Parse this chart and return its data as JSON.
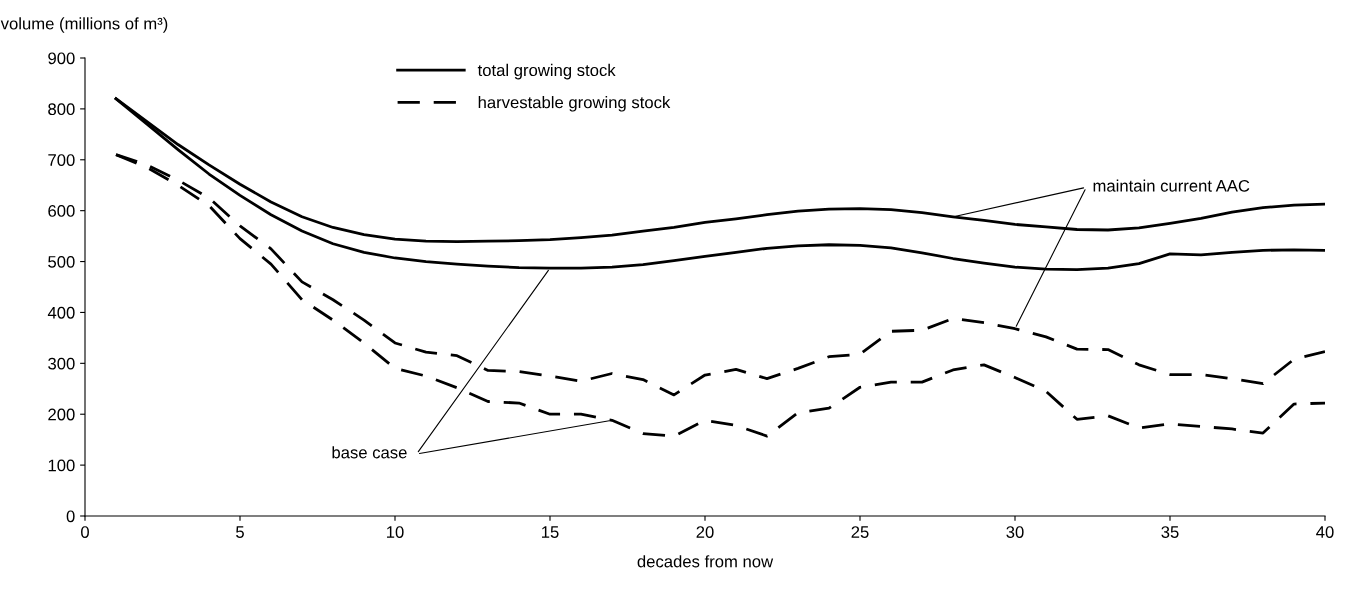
{
  "chart_data": {
    "type": "line",
    "ylabel": "volume (millions of m³)",
    "xlabel": "decades from now",
    "x": [
      1,
      2,
      3,
      4,
      5,
      6,
      7,
      8,
      9,
      10,
      11,
      12,
      13,
      14,
      15,
      16,
      17,
      18,
      19,
      20,
      21,
      22,
      23,
      24,
      25,
      26,
      27,
      28,
      29,
      30,
      31,
      32,
      33,
      34,
      35,
      36,
      37,
      38,
      39,
      40
    ],
    "xlim": [
      0,
      40
    ],
    "xticks": [
      0,
      5,
      10,
      15,
      20,
      25,
      30,
      35,
      40
    ],
    "ylim": [
      0,
      900
    ],
    "yticks": [
      0,
      100,
      200,
      300,
      400,
      500,
      600,
      700,
      800,
      900
    ],
    "grid": false,
    "legend": "top left",
    "marker": "none",
    "series": [
      {
        "name": "total growing stock",
        "color": "#000000",
        "line_style": "solid",
        "values": [
          820,
          775,
          730,
          690,
          652,
          617,
          588,
          567,
          553,
          544,
          540,
          539,
          540,
          541,
          543,
          547,
          552,
          560,
          567,
          577,
          584,
          592,
          599,
          603,
          604,
          602,
          596,
          588,
          581,
          573,
          568,
          563,
          562,
          566,
          575,
          585,
          597,
          606,
          611,
          613
        ]
      },
      {
        "color": "#000000",
        "line_style": "solid",
        "values": [
          820,
          770,
          720,
          672,
          630,
          592,
          560,
          535,
          518,
          507,
          500,
          495,
          491,
          488,
          487,
          487,
          489,
          494,
          502,
          510,
          518,
          526,
          531,
          533,
          532,
          527,
          517,
          506,
          497,
          489,
          485,
          484,
          487,
          496,
          515,
          513,
          518,
          522,
          523,
          522
        ]
      },
      {
        "name": "harvestable growing stock",
        "color": "#000000",
        "line_style": "dashed",
        "values": [
          710,
          690,
          660,
          625,
          570,
          525,
          460,
          425,
          385,
          340,
          322,
          315,
          286,
          284,
          275,
          265,
          280,
          268,
          238,
          277,
          288,
          270,
          290,
          313,
          318,
          363,
          365,
          388,
          380,
          368,
          352,
          328,
          327,
          297,
          278,
          278,
          270,
          260,
          308,
          323
        ]
      },
      {
        "color": "#000000",
        "line_style": "dashed",
        "values": [
          710,
          685,
          650,
          610,
          545,
          495,
          425,
          385,
          340,
          290,
          275,
          252,
          225,
          222,
          200,
          200,
          188,
          162,
          157,
          188,
          178,
          157,
          203,
          212,
          253,
          263,
          263,
          287,
          297,
          272,
          245,
          190,
          197,
          173,
          181,
          176,
          171,
          163,
          220,
          222
        ]
      }
    ],
    "annotations": [
      {
        "text": "base case",
        "x": 15,
        "y": 487
      },
      {
        "text": "maintain current AAC",
        "x": 28,
        "y": 588
      }
    ]
  }
}
